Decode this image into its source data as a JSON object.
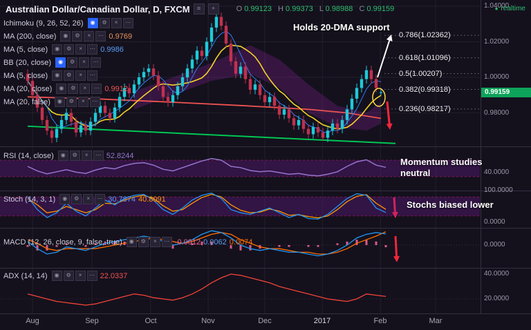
{
  "icons": {
    "dot": "●",
    "eye": "◉",
    "gear": "⚙",
    "close": "×",
    "more": "⋯",
    "chart_style": "≡",
    "compare": "+"
  },
  "colors": {
    "up": "#1fc9d8",
    "down": "#c0314e",
    "ma5": "#2d7ff9",
    "ma10": "#f5d328",
    "ma200": "#ef5350",
    "trendline": "#00c853",
    "cloud": "rgba(156,39,176,0.25)",
    "rsi": "#9575cd",
    "stoch_k": "#2196f3",
    "stoch_d": "#ff9800",
    "macd": "#2196f3",
    "macd_signal": "#ff6d00",
    "macd_hist": "#f06292",
    "adx": "#f44336",
    "band": "rgba(123,31,162,0.30)",
    "band_edge": "rgba(233,30,99,0.45)",
    "accent_green": "#2fbf71",
    "tag_bg": "#0ea35a",
    "arrow_red": "#f4273c",
    "arrow_white": "#ffffff",
    "circle": "#ffd54a",
    "grid": "rgba(255,255,255,0.06)",
    "separator": "#34303f"
  },
  "header": {
    "title": "Australian Dollar/Canadian Dollar, D, FXCM",
    "ohlc": {
      "o_label": "O",
      "o": "0.99123",
      "h_label": "H",
      "h": "0.99373",
      "l_label": "L",
      "l": "0.98988",
      "c_label": "C",
      "c": "0.99159"
    },
    "realtime": "realtime"
  },
  "legend_main": {
    "rows": [
      {
        "label": "Ichimoku (9, 26, 52, 26)"
      },
      {
        "label": "MA (200, close)",
        "value": "0.9769"
      },
      {
        "label": "MA (5, close)",
        "value": "0.9986"
      },
      {
        "label": "BB (20, close)"
      },
      {
        "label": "MA (5, close)"
      },
      {
        "label": "MA (20, close)",
        "value": "0.9912"
      },
      {
        "label": "MA (20, false)"
      }
    ]
  },
  "pane_legends": {
    "rsi": {
      "label": "RSI (14, close)",
      "value": "52.8244"
    },
    "stoch": {
      "label": "Stoch (14, 3, 1)",
      "k": "30.7874",
      "d": "40.8091"
    },
    "macd": {
      "label": "MACD (12, 26, close, 9, false, true)",
      "hist": "-0.0012",
      "macd": "0.0062",
      "signal": "0.0074"
    },
    "adx": {
      "label": "ADX (14, 14)",
      "value": "22.0337"
    }
  },
  "annotations": {
    "dma": "Holds 20-DMA support",
    "momentum_line1": "Momentum studies",
    "momentum_line2": "neutral",
    "stoch": "Stochs biased lower"
  },
  "fib_levels": [
    {
      "text": "0.786(1.02362)",
      "price": 1.02362
    },
    {
      "text": "0.618(1.01096)",
      "price": 1.01096
    },
    {
      "text": "0.5(1.00207)",
      "price": 1.00207
    },
    {
      "text": "0.382(0.99318)",
      "price": 0.99318
    },
    {
      "text": "0.236(0.98217)",
      "price": 0.98217
    }
  ],
  "price_axis": {
    "labels": [
      {
        "text": "1.04000",
        "price": 1.04
      },
      {
        "text": "1.02000",
        "price": 1.02
      },
      {
        "text": "1.00000",
        "price": 1.0
      },
      {
        "text": "0.98000",
        "price": 0.98
      }
    ],
    "tag": {
      "text": "0.99159",
      "price": 0.99159
    }
  },
  "pane_axis": {
    "rsi": [
      {
        "text": "40.0000",
        "value": 40
      }
    ],
    "stoch": [
      {
        "text": "100.0000",
        "value": 100
      },
      {
        "text": "0.0000",
        "value": 0
      }
    ],
    "macd": [
      {
        "text": "0.0000",
        "value": 0
      }
    ],
    "adx": [
      {
        "text": "40.0000",
        "value": 40
      },
      {
        "text": "20.0000",
        "value": 20
      }
    ]
  },
  "time_axis": [
    {
      "text": "Aug",
      "bar": 1
    },
    {
      "text": "Sep",
      "bar": 13.3
    },
    {
      "text": "Oct",
      "bar": 25.4
    },
    {
      "text": "Nov",
      "bar": 37.3
    },
    {
      "text": "Dec",
      "bar": 49
    },
    {
      "text": "2017",
      "bar": 60.9
    },
    {
      "text": "Feb",
      "bar": 72.9
    },
    {
      "text": "Mar",
      "bar": 84.3
    }
  ],
  "chart_data": {
    "type": "candlestick",
    "title": "Australian Dollar/Canadian Dollar, D, FXCM",
    "interval": "D",
    "last": {
      "open": 0.99123,
      "high": 0.99373,
      "low": 0.98988,
      "close": 0.99159
    },
    "price_range": [
      0.9612,
      1.0435
    ],
    "candles": [
      [
        1.002,
        1.0045,
        0.9955,
        0.998
      ],
      [
        0.998,
        1.0005,
        0.9875,
        0.99
      ],
      [
        0.99,
        0.9925,
        0.9805,
        0.983
      ],
      [
        0.983,
        0.9855,
        0.9735,
        0.976
      ],
      [
        0.976,
        0.9785,
        0.9675,
        0.97
      ],
      [
        0.97,
        0.9725,
        0.963,
        0.966
      ],
      [
        0.966,
        0.9735,
        0.9635,
        0.971
      ],
      [
        0.971,
        0.9785,
        0.9685,
        0.976
      ],
      [
        0.976,
        0.9825,
        0.9735,
        0.98
      ],
      [
        0.98,
        0.9825,
        0.9725,
        0.975
      ],
      [
        0.975,
        0.9775,
        0.9665,
        0.969
      ],
      [
        0.969,
        0.9755,
        0.9665,
        0.973
      ],
      [
        0.973,
        0.9755,
        0.9675,
        0.97
      ],
      [
        0.97,
        0.9775,
        0.9675,
        0.975
      ],
      [
        0.975,
        0.9825,
        0.9725,
        0.98
      ],
      [
        0.98,
        0.9865,
        0.9775,
        0.984
      ],
      [
        0.984,
        0.9865,
        0.9775,
        0.98
      ],
      [
        0.98,
        0.9825,
        0.9745,
        0.977
      ],
      [
        0.977,
        0.9855,
        0.9745,
        0.983
      ],
      [
        0.983,
        0.9915,
        0.9805,
        0.989
      ],
      [
        0.989,
        0.9965,
        0.9865,
        0.994
      ],
      [
        0.994,
        0.9965,
        0.9885,
        0.991
      ],
      [
        0.991,
        0.9985,
        0.9885,
        0.996
      ],
      [
        0.996,
        1.0025,
        0.9935,
        1.0
      ],
      [
        1.0,
        1.0055,
        0.9975,
        1.003
      ],
      [
        1.003,
        1.0075,
        1.0005,
        1.005
      ],
      [
        1.005,
        1.0075,
        0.9985,
        1.001
      ],
      [
        1.001,
        1.0035,
        0.9925,
        0.995
      ],
      [
        0.995,
        0.9975,
        0.9865,
        0.989
      ],
      [
        0.989,
        0.9915,
        0.9835,
        0.986
      ],
      [
        0.986,
        0.9925,
        0.9835,
        0.99
      ],
      [
        0.99,
        0.9975,
        0.9875,
        0.995
      ],
      [
        0.995,
        1.0025,
        0.9925,
        1.0
      ],
      [
        1.0,
        1.0075,
        0.9975,
        1.005
      ],
      [
        1.005,
        1.0125,
        1.0025,
        1.01
      ],
      [
        1.01,
        1.0175,
        1.0075,
        1.015
      ],
      [
        1.015,
        1.0175,
        1.0095,
        1.012
      ],
      [
        1.012,
        1.0225,
        1.0095,
        1.02
      ],
      [
        1.02,
        1.0305,
        1.0175,
        1.028
      ],
      [
        1.028,
        1.036,
        1.0255,
        1.034
      ],
      [
        1.034,
        1.0365,
        1.0265,
        1.029
      ],
      [
        1.029,
        1.0315,
        1.0165,
        1.019
      ],
      [
        1.019,
        1.0215,
        1.0065,
        1.009
      ],
      [
        1.009,
        1.0115,
        0.9995,
        1.002
      ],
      [
        1.002,
        1.0085,
        0.9995,
        1.006
      ],
      [
        1.006,
        1.0085,
        0.9965,
        0.999
      ],
      [
        0.999,
        1.0015,
        0.9905,
        0.993
      ],
      [
        0.993,
        0.9985,
        0.9905,
        0.996
      ],
      [
        0.996,
        0.9985,
        0.9875,
        0.99
      ],
      [
        0.99,
        0.9925,
        0.9835,
        0.986
      ],
      [
        0.986,
        0.9915,
        0.9835,
        0.989
      ],
      [
        0.989,
        0.9915,
        0.9815,
        0.984
      ],
      [
        0.984,
        0.9865,
        0.9765,
        0.979
      ],
      [
        0.979,
        0.9845,
        0.9765,
        0.982
      ],
      [
        0.982,
        0.9845,
        0.9745,
        0.977
      ],
      [
        0.977,
        0.9795,
        0.9705,
        0.973
      ],
      [
        0.973,
        0.9785,
        0.9705,
        0.976
      ],
      [
        0.976,
        0.9785,
        0.9685,
        0.971
      ],
      [
        0.971,
        0.9735,
        0.9655,
        0.968
      ],
      [
        0.968,
        0.9745,
        0.9655,
        0.972
      ],
      [
        0.972,
        0.9745,
        0.9665,
        0.969
      ],
      [
        0.969,
        0.9715,
        0.9645,
        0.966
      ],
      [
        0.966,
        0.9725,
        0.9635,
        0.97
      ],
      [
        0.97,
        0.9765,
        0.9675,
        0.974
      ],
      [
        0.974,
        0.9765,
        0.9685,
        0.971
      ],
      [
        0.971,
        0.9785,
        0.9685,
        0.976
      ],
      [
        0.976,
        0.9845,
        0.9735,
        0.982
      ],
      [
        0.982,
        0.9905,
        0.9795,
        0.988
      ],
      [
        0.988,
        0.9965,
        0.9855,
        0.994
      ],
      [
        0.994,
        1.0015,
        0.9915,
        0.999
      ],
      [
        0.999,
        1.0065,
        0.9965,
        1.004
      ],
      [
        1.004,
        1.0065,
        0.9965,
        0.999
      ],
      [
        0.999,
        1.0015,
        0.9915,
        0.994
      ],
      [
        0.99123,
        0.99373,
        0.98988,
        0.99159
      ]
    ],
    "indicators": {
      "rsi": [
        55,
        44,
        37,
        42,
        47,
        41,
        38,
        46,
        52,
        49,
        57,
        62,
        64,
        58,
        48,
        44,
        52,
        60,
        68,
        74,
        70,
        55,
        52,
        45,
        42,
        44,
        40,
        36,
        38,
        34,
        32,
        36,
        42,
        55,
        66,
        71,
        58,
        52.8
      ],
      "stoch_k": [
        80,
        40,
        15,
        30,
        60,
        35,
        20,
        45,
        70,
        55,
        75,
        85,
        88,
        70,
        40,
        25,
        45,
        70,
        85,
        92,
        75,
        40,
        30,
        25,
        35,
        45,
        30,
        15,
        25,
        12,
        10,
        25,
        50,
        75,
        90,
        85,
        45,
        30.8
      ],
      "stoch_d": [
        75,
        55,
        30,
        35,
        50,
        40,
        30,
        40,
        60,
        58,
        70,
        80,
        85,
        75,
        52,
        35,
        40,
        60,
        78,
        88,
        80,
        55,
        38,
        30,
        32,
        42,
        35,
        22,
        24,
        18,
        14,
        20,
        40,
        65,
        82,
        87,
        60,
        40.8
      ],
      "macd": [
        0.002,
        -0.002,
        -0.005,
        -0.004,
        -0.001,
        -0.002,
        -0.003,
        -0.001,
        0.001,
        0.002,
        0.003,
        0.004,
        0.005,
        0.004,
        0.002,
        0,
        0.001,
        0.003,
        0.006,
        0.008,
        0.007,
        0.004,
        0,
        -0.002,
        -0.003,
        -0.002,
        -0.003,
        -0.004,
        -0.004,
        -0.005,
        -0.006,
        -0.005,
        -0.003,
        0,
        0.004,
        0.006,
        0.007,
        0.0062
      ],
      "macd_signal": [
        0.003,
        0.001,
        -0.002,
        -0.003,
        -0.002,
        -0.002,
        -0.002,
        -0.002,
        -0.001,
        0,
        0.001,
        0.002,
        0.003,
        0.004,
        0.003,
        0.002,
        0.001,
        0.002,
        0.004,
        0.006,
        0.007,
        0.006,
        0.003,
        0.001,
        -0.001,
        -0.002,
        -0.002,
        -0.003,
        -0.004,
        -0.004,
        -0.005,
        -0.005,
        -0.004,
        -0.002,
        0.001,
        0.003,
        0.005,
        0.0074
      ],
      "adx": [
        24,
        22,
        20,
        18,
        17,
        16,
        15,
        16,
        18,
        20,
        22,
        24,
        23,
        21,
        20,
        19,
        21,
        24,
        28,
        33,
        37,
        40,
        39,
        37,
        35,
        33,
        30,
        28,
        26,
        24,
        22,
        20,
        19,
        18,
        20,
        24,
        23,
        22
      ]
    },
    "overlays": {
      "ma200_anchors": [
        [
          0,
          0.989
        ],
        [
          15,
          0.9878
        ],
        [
          30,
          0.986
        ],
        [
          45,
          0.984
        ],
        [
          58,
          0.982
        ],
        [
          66,
          0.98
        ],
        [
          73,
          0.9769
        ]
      ],
      "trendline": [
        [
          0,
          0.9725
        ],
        [
          76,
          0.9628
        ]
      ],
      "cloud_upper": [
        [
          22,
          0.992
        ],
        [
          30,
          1.0
        ],
        [
          38,
          1.008
        ],
        [
          46,
          1.018
        ],
        [
          52,
          1.01
        ],
        [
          58,
          0.996
        ],
        [
          64,
          0.984
        ],
        [
          70,
          0.98
        ],
        [
          73,
          0.986
        ]
      ],
      "cloud_lower": [
        [
          22,
          0.982
        ],
        [
          30,
          0.99
        ],
        [
          38,
          0.998
        ],
        [
          46,
          1.002
        ],
        [
          52,
          0.994
        ],
        [
          58,
          0.98
        ],
        [
          64,
          0.972
        ],
        [
          70,
          0.97
        ],
        [
          73,
          0.974
        ]
      ]
    }
  }
}
